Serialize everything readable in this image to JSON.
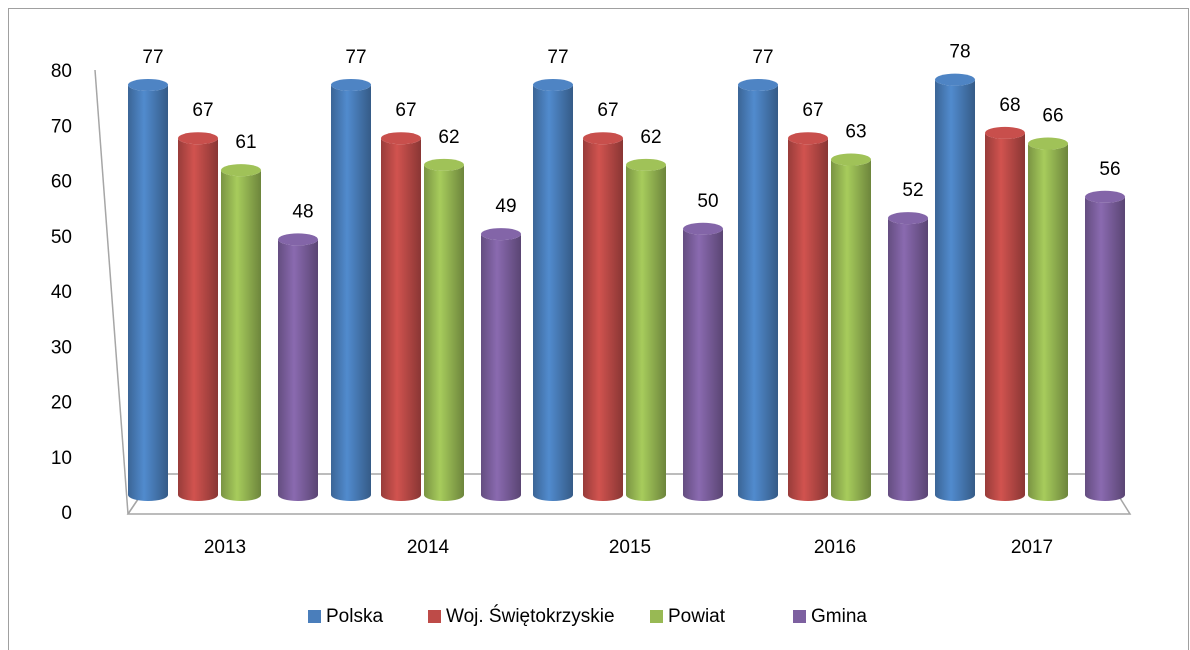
{
  "chart_data": {
    "type": "bar",
    "style": "3d-cylinder",
    "categories": [
      "2013",
      "2014",
      "2015",
      "2016",
      "2017"
    ],
    "series": [
      {
        "name": "Polska",
        "color": "#4a7ebb",
        "values": [
          77,
          77,
          77,
          77,
          78
        ]
      },
      {
        "name": "Woj. Świętokrzyskie",
        "color": "#be4b48",
        "values": [
          67,
          67,
          67,
          67,
          68
        ]
      },
      {
        "name": "Powiat",
        "color": "#98b954",
        "values": [
          61,
          62,
          62,
          63,
          66
        ]
      },
      {
        "name": "Gmina",
        "color": "#7d60a0",
        "values": [
          48,
          49,
          50,
          52,
          56
        ]
      }
    ],
    "ylim": [
      0,
      80
    ],
    "yticks": [
      0,
      10,
      20,
      30,
      40,
      50,
      60,
      70,
      80
    ],
    "grid": false,
    "legend": "bottom",
    "data_labels": true
  }
}
